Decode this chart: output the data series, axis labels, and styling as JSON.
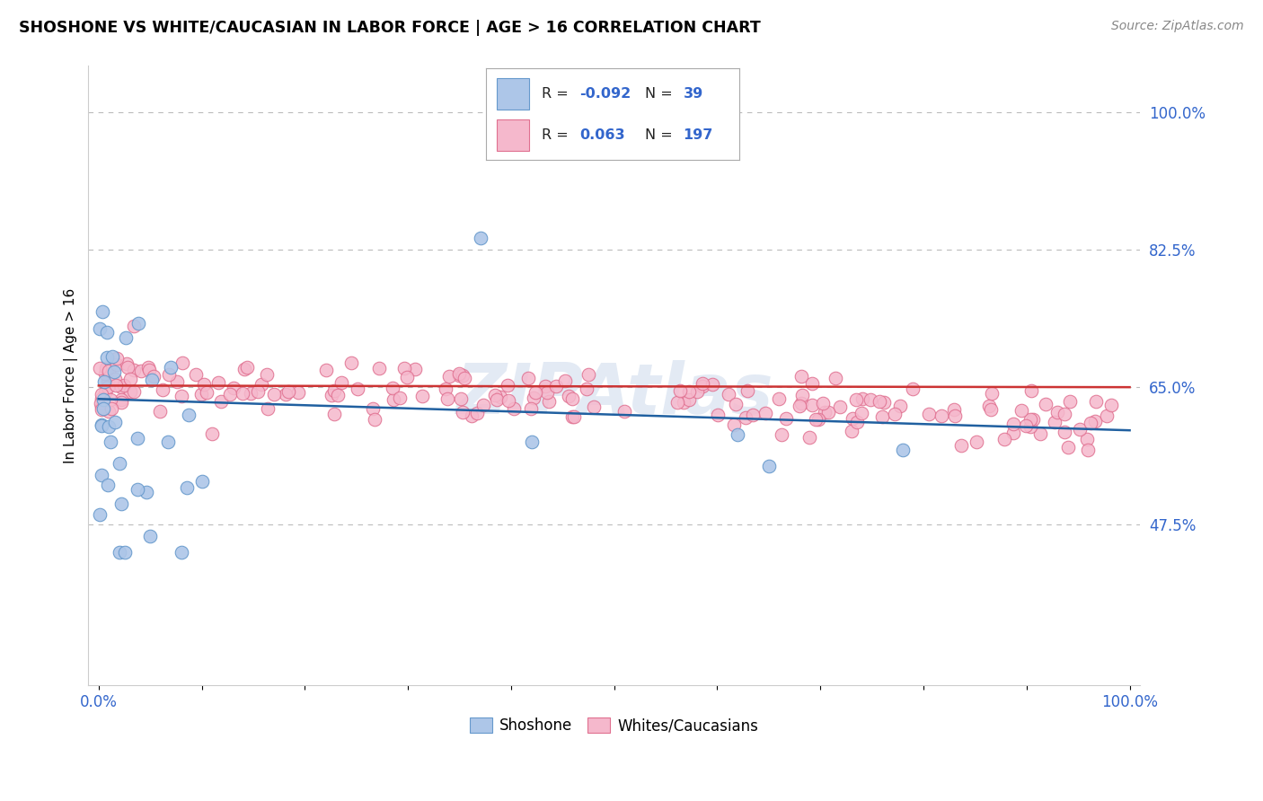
{
  "title": "SHOSHONE VS WHITE/CAUCASIAN IN LABOR FORCE | AGE > 16 CORRELATION CHART",
  "source": "Source: ZipAtlas.com",
  "ylabel": "In Labor Force | Age > 16",
  "xlim": [
    -0.01,
    1.01
  ],
  "ylim": [
    0.27,
    1.06
  ],
  "yticks": [
    0.475,
    0.65,
    0.825,
    1.0
  ],
  "ytick_labels": [
    "47.5%",
    "65.0%",
    "82.5%",
    "100.0%"
  ],
  "xtick_labels": [
    "0.0%",
    "",
    "",
    "",
    "",
    "",
    "",
    "",
    "",
    "",
    "100.0%"
  ],
  "shoshone_color": "#adc6e8",
  "shoshone_edge": "#6699cc",
  "caucasian_color": "#f5b8cc",
  "caucasian_edge": "#e07090",
  "line_blue": "#2060a0",
  "line_red": "#cc3333",
  "watermark": "ZIPAtlas",
  "shoshone_line_x0": 0.0,
  "shoshone_line_y0": 0.635,
  "shoshone_line_x1": 1.0,
  "shoshone_line_y1": 0.595,
  "caucasian_line_x0": 0.0,
  "caucasian_line_y0": 0.652,
  "caucasian_line_x1": 1.0,
  "caucasian_line_y1": 0.65
}
